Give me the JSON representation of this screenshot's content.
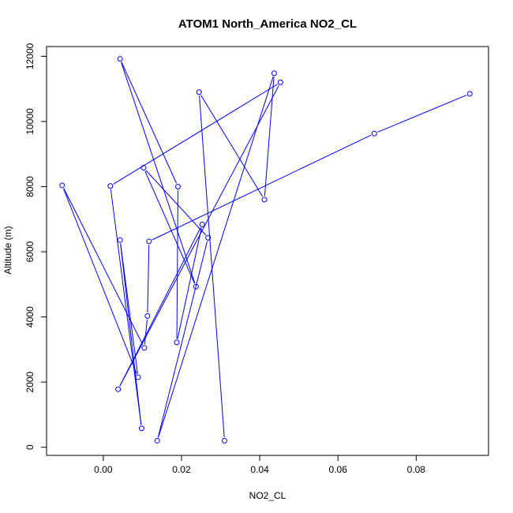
{
  "chart_data": {
    "type": "line",
    "title": "ATOM1 North_America NO2_CL",
    "xlabel": "NO2_CL",
    "ylabel": "Altitude (m)",
    "xlim": [
      -0.0145,
      0.0985
    ],
    "ylim": [
      -250,
      12300
    ],
    "x_ticks": [
      0.0,
      0.02,
      0.04,
      0.06,
      0.08
    ],
    "x_tick_labels": [
      "0.00",
      "0.02",
      "0.04",
      "0.06",
      "0.08"
    ],
    "y_ticks": [
      0,
      2000,
      4000,
      6000,
      8000,
      10000,
      12000
    ],
    "y_tick_labels": [
      "0",
      "2000",
      "4000",
      "6000",
      "8000",
      "10000",
      "12000"
    ],
    "grid": false,
    "legend": "none",
    "series": [
      {
        "color": "#0000ff",
        "marker": "open-circle",
        "points": [
          {
            "x": 0.031,
            "y": 200
          },
          {
            "x": 0.0245,
            "y": 10900
          },
          {
            "x": 0.0412,
            "y": 7600
          },
          {
            "x": 0.0437,
            "y": 11480
          },
          {
            "x": 0.0138,
            "y": 200
          },
          {
            "x": 0.0268,
            "y": 6430
          },
          {
            "x": 0.0103,
            "y": 8580
          },
          {
            "x": 0.0237,
            "y": 4930
          },
          {
            "x": 0.0043,
            "y": 11920
          },
          {
            "x": 0.0191,
            "y": 8000
          },
          {
            "x": 0.0188,
            "y": 3220
          },
          {
            "x": 0.0253,
            "y": 6840
          },
          {
            "x": 0.0038,
            "y": 1780
          },
          {
            "x": 0.0453,
            "y": 11200
          },
          {
            "x": 0.0018,
            "y": 8020
          },
          {
            "x": 0.0098,
            "y": 580
          },
          {
            "x": 0.0043,
            "y": 6360
          },
          {
            "x": 0.0089,
            "y": 2150
          },
          {
            "x": -0.0105,
            "y": 8040
          },
          {
            "x": 0.0105,
            "y": 3050
          },
          {
            "x": 0.0113,
            "y": 4030
          },
          {
            "x": 0.0117,
            "y": 6320
          },
          {
            "x": 0.0693,
            "y": 9630
          },
          {
            "x": 0.0937,
            "y": 10850
          }
        ]
      }
    ]
  }
}
